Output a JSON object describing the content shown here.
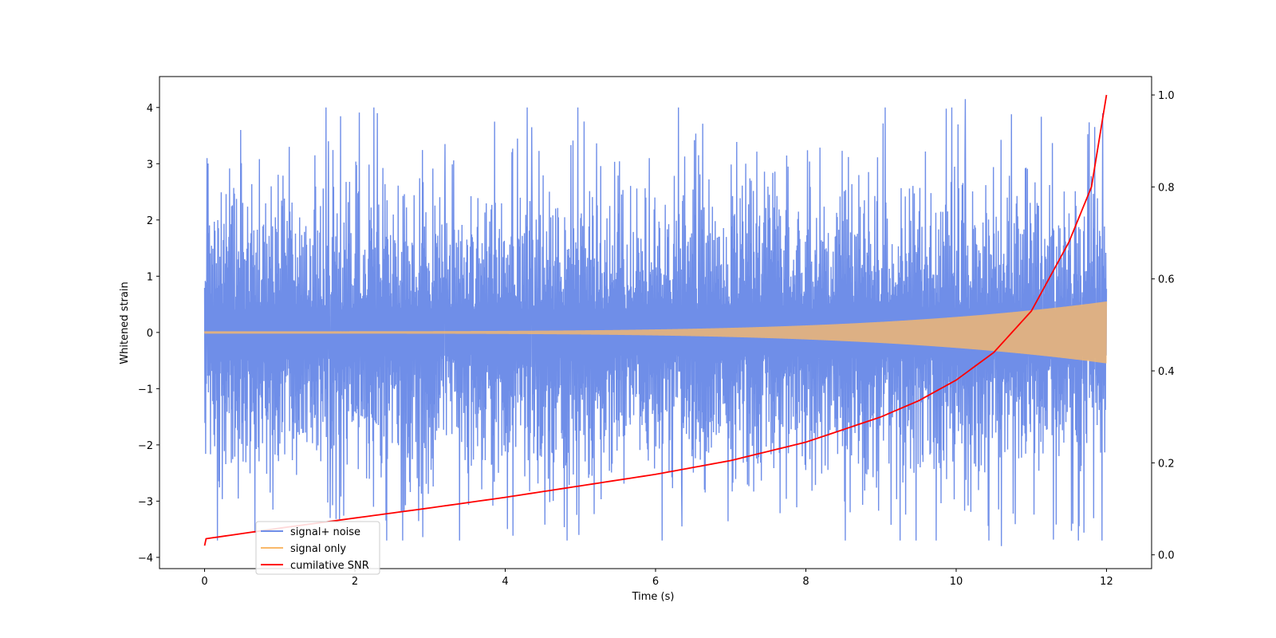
{
  "chart_data": {
    "type": "line",
    "xlabel": "Time (s)",
    "ylabel": "Whitened strain",
    "y2label": "",
    "xlim": [
      -0.6,
      12.6
    ],
    "ylim": [
      -4.2,
      4.55
    ],
    "y2lim": [
      -0.03,
      1.04
    ],
    "xticks": [
      0,
      2,
      4,
      6,
      8,
      10,
      12
    ],
    "xtick_labels": [
      "0",
      "2",
      "4",
      "6",
      "8",
      "10",
      "12"
    ],
    "yticks": [
      -4,
      -3,
      -2,
      -1,
      0,
      1,
      2,
      3,
      4
    ],
    "ytick_labels": [
      "−4",
      "−3",
      "−2",
      "−1",
      "0",
      "1",
      "2",
      "3",
      "4"
    ],
    "y2ticks": [
      0.0,
      0.2,
      0.4,
      0.6,
      0.8,
      1.0
    ],
    "y2tick_labels": [
      "0.0",
      "0.2",
      "0.4",
      "0.6",
      "0.8",
      "1.0"
    ],
    "grid": false,
    "legend_position": "lower-left",
    "series": [
      {
        "name": "signal+ noise",
        "color": "#6f8ee8",
        "axis": "left",
        "x_range": [
          0,
          12
        ],
        "envelope_typical": 2.3,
        "peak_examples": [
          {
            "x": 0.03,
            "y": 3.1
          },
          {
            "x": 0.48,
            "y": 3.6
          },
          {
            "x": 1.65,
            "y": 3.4
          },
          {
            "x": 2.3,
            "y": 3.9
          },
          {
            "x": 3.2,
            "y": 3.35
          },
          {
            "x": 4.35,
            "y": 3.65
          },
          {
            "x": 5.05,
            "y": 3.75
          },
          {
            "x": 7.2,
            "y": 3.0
          },
          {
            "x": 10.12,
            "y": 4.15
          },
          {
            "x": 11.95,
            "y": 3.9
          },
          {
            "x": 1.67,
            "y": -3.3
          },
          {
            "x": 4.98,
            "y": -3.6
          },
          {
            "x": 6.35,
            "y": -3.45
          },
          {
            "x": 10.6,
            "y": -3.8
          },
          {
            "x": 11.55,
            "y": -3.4
          }
        ]
      },
      {
        "name": "signal only",
        "color": "#f9b96a",
        "axis": "left",
        "x_range": [
          0,
          12
        ],
        "amplitude_start": 0.02,
        "amplitude_end": 0.55
      },
      {
        "name": "cumilative SNR",
        "color": "#ff0000",
        "axis": "right",
        "x": [
          0,
          0.02,
          1,
          2,
          3,
          4,
          5,
          6,
          7,
          8,
          9,
          9.5,
          10,
          10.5,
          11,
          11.5,
          11.8,
          12
        ],
        "values": [
          0.02,
          0.035,
          0.058,
          0.08,
          0.102,
          0.125,
          0.15,
          0.175,
          0.205,
          0.245,
          0.3,
          0.335,
          0.38,
          0.44,
          0.53,
          0.68,
          0.8,
          1.0
        ]
      }
    ]
  }
}
